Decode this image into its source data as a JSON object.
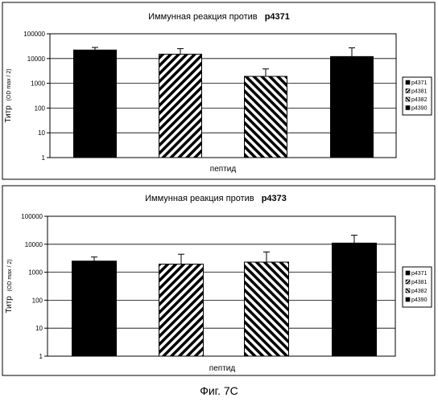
{
  "figure_caption": "Фиг. 7С",
  "chart_data": [
    {
      "type": "bar",
      "title_prefix": "Иммунная реакция против",
      "title_target": "p4371",
      "ylabel_main": "Титр",
      "ylabel_sub": "(OD max / 2)",
      "xlabel": "пептид",
      "yscale": "log",
      "ylim": [
        1,
        100000
      ],
      "yticks": [
        "1",
        "10",
        "100",
        "1000",
        "10000",
        "100000"
      ],
      "legend": [
        "p4371",
        "p4381",
        "p4382",
        "p4390"
      ],
      "legend_position": "right",
      "series": [
        {
          "name": "p4371",
          "value": 22000,
          "error": 28000,
          "pattern": "solid"
        },
        {
          "name": "p4381",
          "value": 15000,
          "error": 25000,
          "pattern": "hatch-right"
        },
        {
          "name": "p4382",
          "value": 1900,
          "error": 3800,
          "pattern": "hatch-left"
        },
        {
          "name": "p4390",
          "value": 12000,
          "error": 27000,
          "pattern": "solid"
        }
      ]
    },
    {
      "type": "bar",
      "title_prefix": "Иммунная реакция против",
      "title_target": "p4373",
      "ylabel_main": "Титр",
      "ylabel_sub": "(OD max / 2)",
      "xlabel": "пептид",
      "yscale": "log",
      "ylim": [
        1,
        100000
      ],
      "yticks": [
        "1",
        "10",
        "100",
        "1000",
        "10000",
        "100000"
      ],
      "legend": [
        "p4371",
        "p4381",
        "p4382",
        "p4390"
      ],
      "legend_position": "right",
      "series": [
        {
          "name": "p4371",
          "value": 2500,
          "error": 3500,
          "pattern": "solid"
        },
        {
          "name": "p4381",
          "value": 1950,
          "error": 4400,
          "pattern": "hatch-right"
        },
        {
          "name": "p4382",
          "value": 2300,
          "error": 5300,
          "pattern": "hatch-left"
        },
        {
          "name": "p4390",
          "value": 11000,
          "error": 21000,
          "pattern": "solid"
        }
      ]
    }
  ]
}
